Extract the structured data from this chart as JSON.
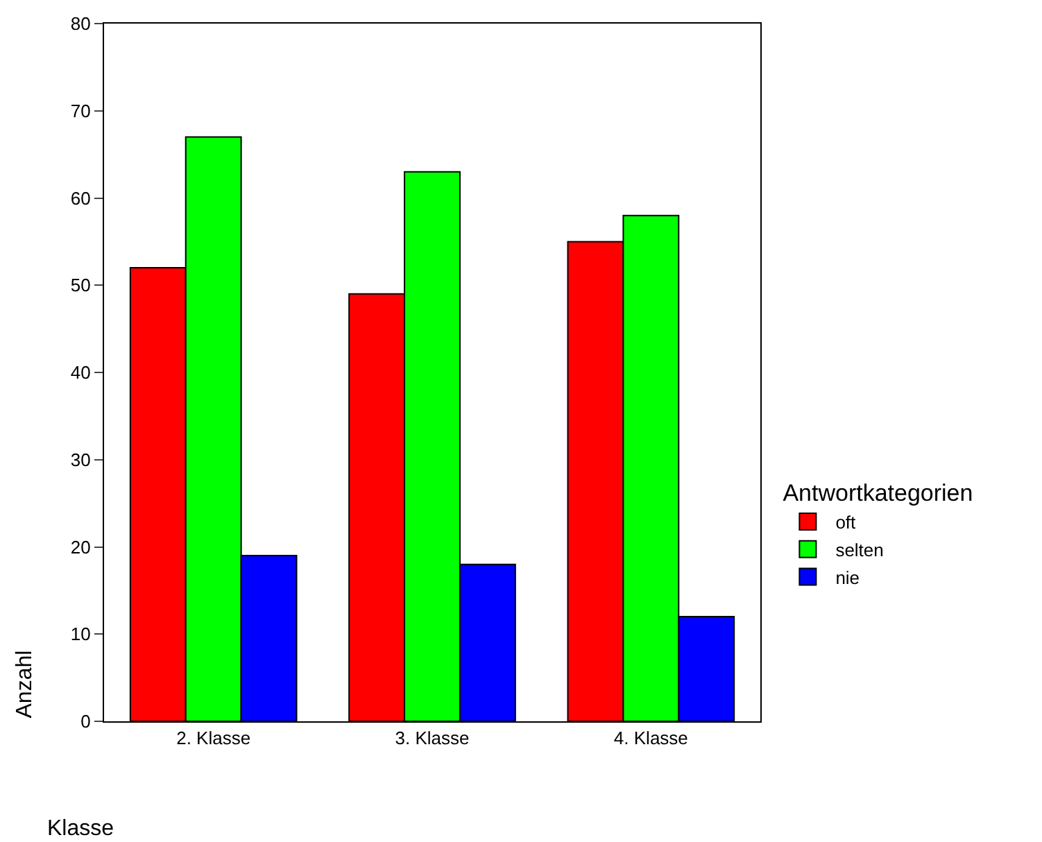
{
  "chart_data": {
    "type": "bar",
    "xlabel": "Klasse",
    "ylabel": "Anzahl",
    "legend_title": "Antwortkategorien",
    "categories": [
      "2. Klasse",
      "3. Klasse",
      "4. Klasse"
    ],
    "series": [
      {
        "name": "oft",
        "color": "#ff0000",
        "values": [
          52,
          49,
          55
        ]
      },
      {
        "name": "selten",
        "color": "#00ff00",
        "values": [
          67,
          63,
          58
        ]
      },
      {
        "name": "nie",
        "color": "#0000ff",
        "values": [
          19,
          18,
          12
        ]
      }
    ],
    "ylim": [
      0,
      80
    ],
    "yticks": [
      0,
      10,
      20,
      30,
      40,
      50,
      60,
      70,
      80
    ],
    "grid": false,
    "legend": "right"
  }
}
